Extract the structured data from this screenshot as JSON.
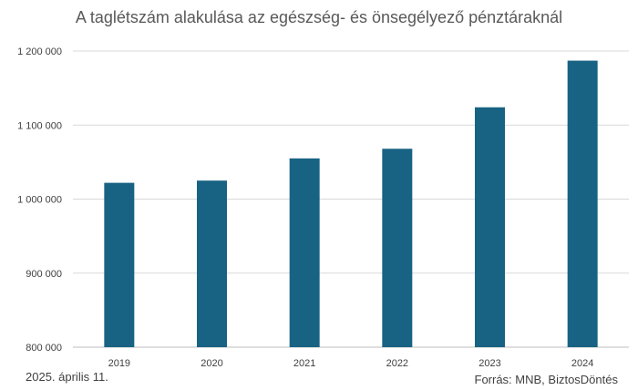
{
  "header": {
    "title": "A taglétszám alakulása az egészség- és önsegélyező pénztáraknál"
  },
  "footer": {
    "date": "2025. április 11.",
    "source": "Forrás: MNB, BiztosDöntés"
  },
  "chart_data": {
    "type": "bar",
    "title": "A taglétszám alakulása az egészség- és önsegélyező pénztáraknál",
    "categories": [
      "2019",
      "2020",
      "2021",
      "2022",
      "2023",
      "2024"
    ],
    "values": [
      1022000,
      1025000,
      1055000,
      1068000,
      1124000,
      1187000
    ],
    "ylim": [
      800000,
      1200000
    ],
    "yticks": [
      800000,
      900000,
      1000000,
      1100000,
      1200000
    ],
    "ytick_labels": [
      "800 000",
      "900 000",
      "1 000 000",
      "1 100 000",
      "1 200 000"
    ],
    "grid": true,
    "bar_color": "#186383",
    "xlabel": "",
    "ylabel": ""
  }
}
